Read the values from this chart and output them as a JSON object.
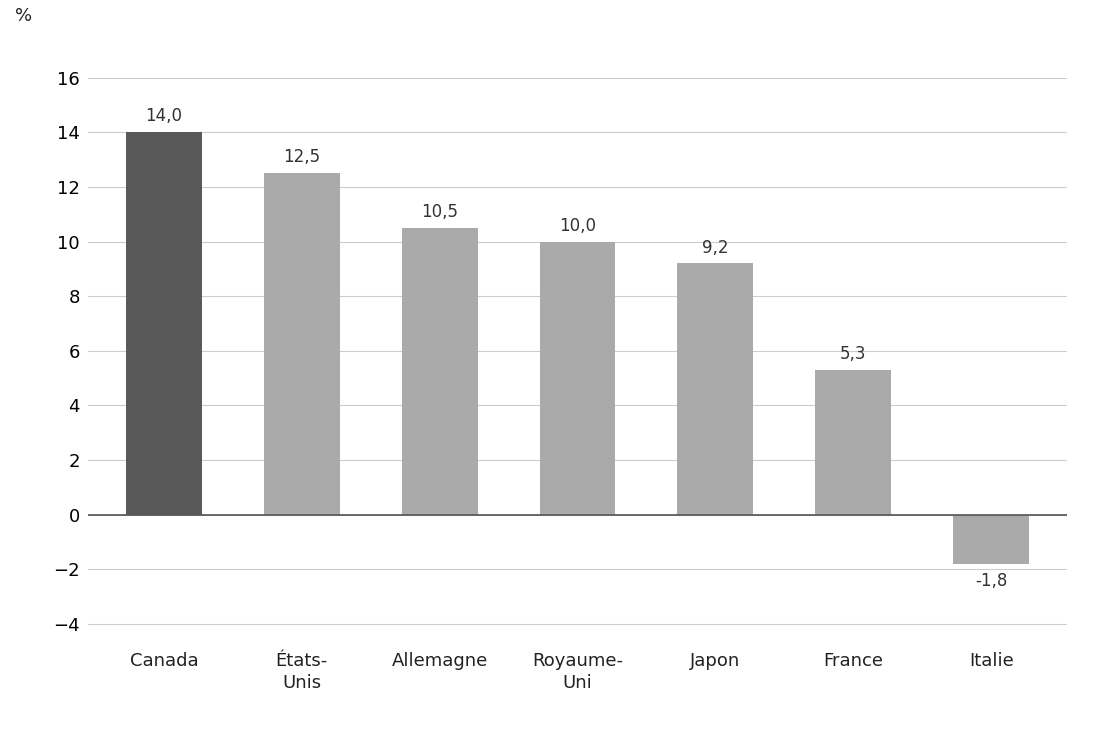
{
  "categories": [
    "Canada",
    "États-\nUnis",
    "Allemagne",
    "Royaume-\nUni",
    "Japon",
    "France",
    "Italie"
  ],
  "values": [
    14.0,
    12.5,
    10.5,
    10.0,
    9.2,
    5.3,
    -1.8
  ],
  "bar_colors": [
    "#595959",
    "#aaaaaa",
    "#aaaaaa",
    "#aaaaaa",
    "#aaaaaa",
    "#aaaaaa",
    "#aaaaaa"
  ],
  "value_labels": [
    "14,0",
    "12,5",
    "10,5",
    "10,0",
    "9,2",
    "5,3",
    "-1,8"
  ],
  "ylabel": "%",
  "ylim": [
    -4.5,
    17.5
  ],
  "yticks": [
    -4,
    -2,
    0,
    2,
    4,
    6,
    8,
    10,
    12,
    14,
    16
  ],
  "background_color": "#ffffff",
  "grid_color": "#cccccc",
  "label_fontsize": 12,
  "tick_fontsize": 13,
  "ylabel_fontsize": 13,
  "bar_width": 0.55
}
